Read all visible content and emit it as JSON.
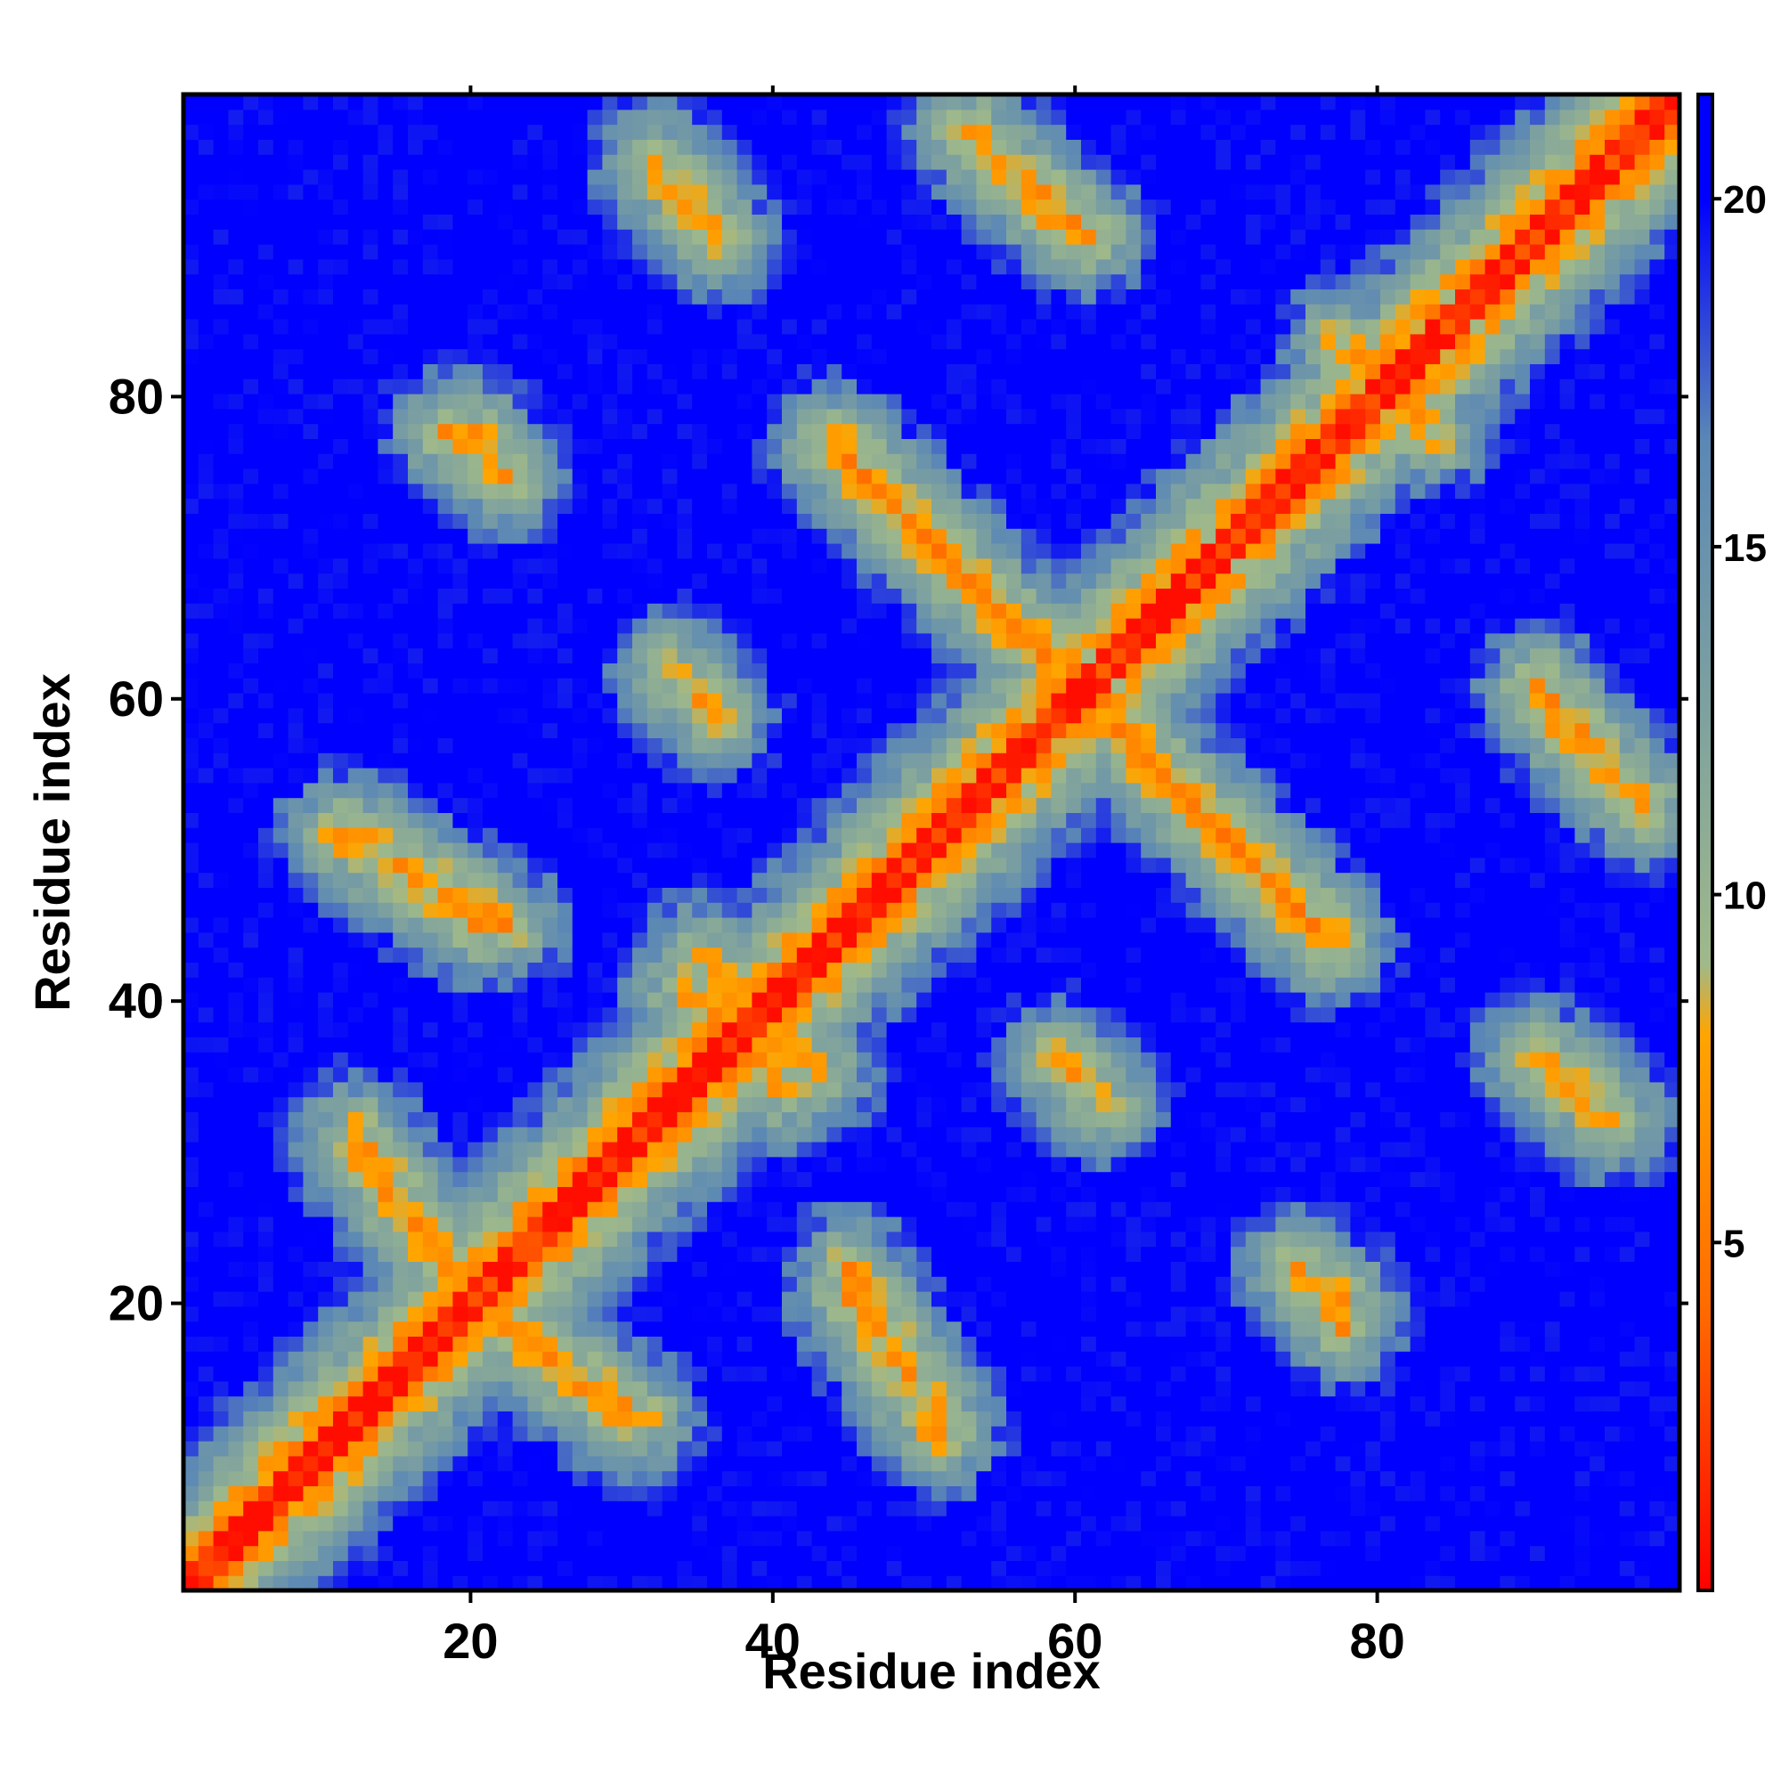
{
  "chart_data": {
    "type": "heatmap",
    "title": "",
    "xlabel": "Residue index",
    "ylabel": "Residue index",
    "n_residues": 100,
    "xlim": [
      1,
      100
    ],
    "ylim": [
      1,
      100
    ],
    "x_ticks": [
      20,
      40,
      60,
      80
    ],
    "x_tick_labels": [
      "20",
      "40",
      "60",
      "80"
    ],
    "y_ticks": [
      20,
      40,
      60,
      80
    ],
    "y_tick_labels": [
      "20",
      "40",
      "60",
      "80"
    ],
    "colorbar": {
      "ticks": [
        5,
        10,
        15,
        20
      ],
      "tick_labels": [
        "5",
        "10",
        "15",
        "20"
      ],
      "range": [
        0,
        21.5
      ],
      "cap_color": "#0000ff",
      "cap_threshold": 20,
      "colors": [
        "#ff0000",
        "#ff6a00",
        "#ffa500",
        "#9fb98a",
        "#5b88b5",
        "#0000ff"
      ],
      "color_stops": [
        0,
        4.0,
        8.0,
        9.0,
        16.5,
        20
      ]
    },
    "motifs": {
      "diagonal_width": 0.9,
      "background_distance": 21.5,
      "contacts": [
        {
          "type": "anti",
          "i0": 32,
          "j0": 96,
          "i1": 36,
          "j1": 91,
          "distance": 7
        },
        {
          "type": "anti",
          "i0": 53,
          "j0": 98,
          "i1": 59,
          "j1": 92,
          "distance": 7
        },
        {
          "type": "anti",
          "i0": 44,
          "j0": 77,
          "i1": 58,
          "j1": 63,
          "distance": 6.5
        },
        {
          "type": "par",
          "i0": 79,
          "j0": 83,
          "i1": 84,
          "j1": 78,
          "distance": 7
        },
        {
          "type": "anti",
          "i0": 11,
          "j0": 51,
          "i1": 20,
          "j1": 45,
          "distance": 7
        },
        {
          "type": "anti",
          "i0": 12,
          "j0": 31,
          "i1": 18,
          "j1": 22,
          "distance": 7
        },
        {
          "type": "anti",
          "i0": 22,
          "j0": 18,
          "i1": 30,
          "j1": 12,
          "distance": 7
        },
        {
          "type": "anti",
          "i0": 45,
          "j0": 22,
          "i1": 51,
          "j1": 12,
          "distance": 7
        },
        {
          "type": "anti",
          "i0": 63,
          "j0": 58,
          "i1": 77,
          "j1": 44,
          "distance": 6.5
        },
        {
          "type": "anti",
          "i0": 91,
          "j0": 61,
          "i1": 98,
          "j1": 53,
          "distance": 7
        },
        {
          "type": "anti",
          "i0": 91,
          "j0": 36,
          "i1": 96,
          "j1": 32,
          "distance": 7
        },
        {
          "type": "anti",
          "i0": 18,
          "j0": 78,
          "i1": 22,
          "j1": 75,
          "distance": 7.5
        },
        {
          "type": "anti",
          "i0": 75,
          "j0": 22,
          "i1": 78,
          "j1": 20,
          "distance": 7.5
        },
        {
          "type": "anti",
          "i0": 33,
          "j0": 62,
          "i1": 36,
          "j1": 59,
          "distance": 7.5
        },
        {
          "type": "anti",
          "i0": 59,
          "j0": 36,
          "i1": 62,
          "j1": 33,
          "distance": 7.5
        },
        {
          "type": "par",
          "i0": 34,
          "j0": 41,
          "i1": 38,
          "j1": 36,
          "distance": 7
        },
        {
          "type": "par",
          "i0": 35,
          "j0": 43,
          "i1": 40,
          "j1": 37,
          "distance": 7.5
        }
      ]
    }
  }
}
